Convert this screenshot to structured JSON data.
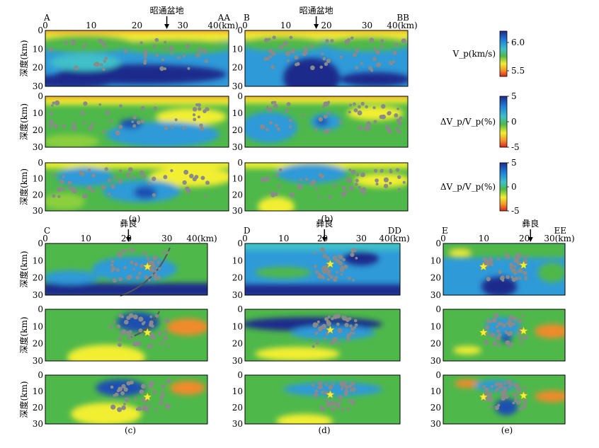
{
  "colorbars": [
    {
      "label": "V_p(km/s)",
      "ticks": [
        "6.0",
        "5.5"
      ]
    },
    {
      "label": "ΔV_p/V_p(%)",
      "ticks": [
        "5",
        "0",
        "-5"
      ]
    },
    {
      "label": "ΔV_p/V_p(%)",
      "ticks": [
        "5",
        "0",
        "-5"
      ]
    }
  ],
  "depth_label": "深度(km)",
  "depth_ticks": [
    "0",
    "10",
    "20",
    "30"
  ],
  "groups": [
    {
      "id": "a",
      "caption": "(a)",
      "start_label": "A",
      "end_label": "AA",
      "x_ticks": [
        "0",
        "10",
        "20",
        "30",
        "40(km)"
      ],
      "x_tick_values": [
        0,
        10,
        20,
        30,
        40
      ],
      "x_max": 40,
      "place_name": "昭通盆地",
      "place_km": 26.5
    },
    {
      "id": "b",
      "caption": "(b)",
      "start_label": "B",
      "end_label": "BB",
      "x_ticks": [
        "0",
        "10",
        "20",
        "30",
        "40(km)"
      ],
      "x_tick_values": [
        0,
        10,
        20,
        30,
        40
      ],
      "x_max": 40,
      "place_name": "昭通盆地",
      "place_km": 17.5
    },
    {
      "id": "c",
      "caption": "(c)",
      "start_label": "C",
      "end_label": "",
      "x_ticks": [
        "0",
        "10",
        "20",
        "30",
        "40(km)"
      ],
      "x_tick_values": [
        0,
        10,
        20,
        30,
        40
      ],
      "x_max": 40,
      "place_name": "彝良",
      "place_km": 20.5
    },
    {
      "id": "d",
      "caption": "(d)",
      "start_label": "D",
      "end_label": "DD",
      "x_ticks": [
        "0",
        "10",
        "20",
        "30",
        "40(km)"
      ],
      "x_tick_values": [
        0,
        10,
        20,
        30,
        40
      ],
      "x_max": 40,
      "place_name": "彝良",
      "place_km": 20.5
    },
    {
      "id": "e",
      "caption": "(e)",
      "start_label": "E",
      "end_label": "EE",
      "x_ticks": [
        "0",
        "10",
        "20",
        "30(km)"
      ],
      "x_tick_values": [
        0,
        10,
        20,
        30
      ],
      "x_max": 30,
      "place_name": "彝良",
      "place_km": 21.5
    }
  ]
}
